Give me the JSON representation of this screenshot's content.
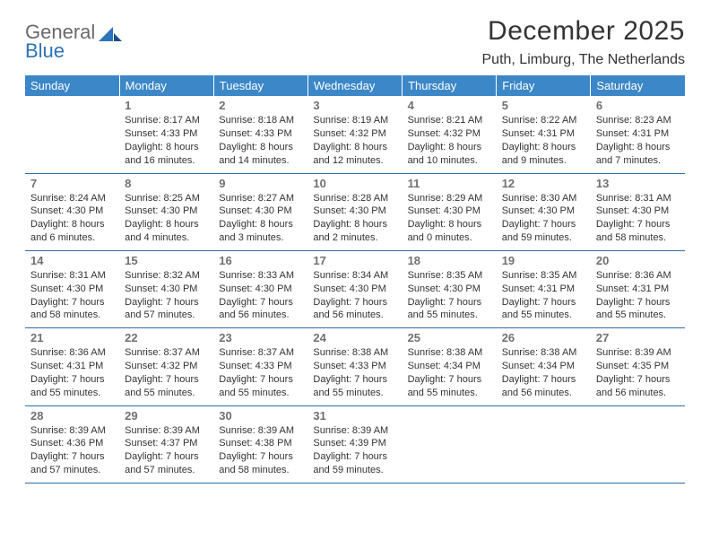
{
  "logo": {
    "line1": "General",
    "line2": "Blue"
  },
  "header": {
    "title": "December 2025",
    "location": "Puth, Limburg, The Netherlands"
  },
  "calendar": {
    "header_bg": "#3c87c7",
    "header_fg": "#ffffff",
    "rule_color": "#2e6ca8",
    "day_headers": [
      "Sunday",
      "Monday",
      "Tuesday",
      "Wednesday",
      "Thursday",
      "Friday",
      "Saturday"
    ],
    "weeks": [
      [
        null,
        {
          "n": "1",
          "sr": "Sunrise: 8:17 AM",
          "ss": "Sunset: 4:33 PM",
          "dl": "Daylight: 8 hours and 16 minutes."
        },
        {
          "n": "2",
          "sr": "Sunrise: 8:18 AM",
          "ss": "Sunset: 4:33 PM",
          "dl": "Daylight: 8 hours and 14 minutes."
        },
        {
          "n": "3",
          "sr": "Sunrise: 8:19 AM",
          "ss": "Sunset: 4:32 PM",
          "dl": "Daylight: 8 hours and 12 minutes."
        },
        {
          "n": "4",
          "sr": "Sunrise: 8:21 AM",
          "ss": "Sunset: 4:32 PM",
          "dl": "Daylight: 8 hours and 10 minutes."
        },
        {
          "n": "5",
          "sr": "Sunrise: 8:22 AM",
          "ss": "Sunset: 4:31 PM",
          "dl": "Daylight: 8 hours and 9 minutes."
        },
        {
          "n": "6",
          "sr": "Sunrise: 8:23 AM",
          "ss": "Sunset: 4:31 PM",
          "dl": "Daylight: 8 hours and 7 minutes."
        }
      ],
      [
        {
          "n": "7",
          "sr": "Sunrise: 8:24 AM",
          "ss": "Sunset: 4:30 PM",
          "dl": "Daylight: 8 hours and 6 minutes."
        },
        {
          "n": "8",
          "sr": "Sunrise: 8:25 AM",
          "ss": "Sunset: 4:30 PM",
          "dl": "Daylight: 8 hours and 4 minutes."
        },
        {
          "n": "9",
          "sr": "Sunrise: 8:27 AM",
          "ss": "Sunset: 4:30 PM",
          "dl": "Daylight: 8 hours and 3 minutes."
        },
        {
          "n": "10",
          "sr": "Sunrise: 8:28 AM",
          "ss": "Sunset: 4:30 PM",
          "dl": "Daylight: 8 hours and 2 minutes."
        },
        {
          "n": "11",
          "sr": "Sunrise: 8:29 AM",
          "ss": "Sunset: 4:30 PM",
          "dl": "Daylight: 8 hours and 0 minutes."
        },
        {
          "n": "12",
          "sr": "Sunrise: 8:30 AM",
          "ss": "Sunset: 4:30 PM",
          "dl": "Daylight: 7 hours and 59 minutes."
        },
        {
          "n": "13",
          "sr": "Sunrise: 8:31 AM",
          "ss": "Sunset: 4:30 PM",
          "dl": "Daylight: 7 hours and 58 minutes."
        }
      ],
      [
        {
          "n": "14",
          "sr": "Sunrise: 8:31 AM",
          "ss": "Sunset: 4:30 PM",
          "dl": "Daylight: 7 hours and 58 minutes."
        },
        {
          "n": "15",
          "sr": "Sunrise: 8:32 AM",
          "ss": "Sunset: 4:30 PM",
          "dl": "Daylight: 7 hours and 57 minutes."
        },
        {
          "n": "16",
          "sr": "Sunrise: 8:33 AM",
          "ss": "Sunset: 4:30 PM",
          "dl": "Daylight: 7 hours and 56 minutes."
        },
        {
          "n": "17",
          "sr": "Sunrise: 8:34 AM",
          "ss": "Sunset: 4:30 PM",
          "dl": "Daylight: 7 hours and 56 minutes."
        },
        {
          "n": "18",
          "sr": "Sunrise: 8:35 AM",
          "ss": "Sunset: 4:30 PM",
          "dl": "Daylight: 7 hours and 55 minutes."
        },
        {
          "n": "19",
          "sr": "Sunrise: 8:35 AM",
          "ss": "Sunset: 4:31 PM",
          "dl": "Daylight: 7 hours and 55 minutes."
        },
        {
          "n": "20",
          "sr": "Sunrise: 8:36 AM",
          "ss": "Sunset: 4:31 PM",
          "dl": "Daylight: 7 hours and 55 minutes."
        }
      ],
      [
        {
          "n": "21",
          "sr": "Sunrise: 8:36 AM",
          "ss": "Sunset: 4:31 PM",
          "dl": "Daylight: 7 hours and 55 minutes."
        },
        {
          "n": "22",
          "sr": "Sunrise: 8:37 AM",
          "ss": "Sunset: 4:32 PM",
          "dl": "Daylight: 7 hours and 55 minutes."
        },
        {
          "n": "23",
          "sr": "Sunrise: 8:37 AM",
          "ss": "Sunset: 4:33 PM",
          "dl": "Daylight: 7 hours and 55 minutes."
        },
        {
          "n": "24",
          "sr": "Sunrise: 8:38 AM",
          "ss": "Sunset: 4:33 PM",
          "dl": "Daylight: 7 hours and 55 minutes."
        },
        {
          "n": "25",
          "sr": "Sunrise: 8:38 AM",
          "ss": "Sunset: 4:34 PM",
          "dl": "Daylight: 7 hours and 55 minutes."
        },
        {
          "n": "26",
          "sr": "Sunrise: 8:38 AM",
          "ss": "Sunset: 4:34 PM",
          "dl": "Daylight: 7 hours and 56 minutes."
        },
        {
          "n": "27",
          "sr": "Sunrise: 8:39 AM",
          "ss": "Sunset: 4:35 PM",
          "dl": "Daylight: 7 hours and 56 minutes."
        }
      ],
      [
        {
          "n": "28",
          "sr": "Sunrise: 8:39 AM",
          "ss": "Sunset: 4:36 PM",
          "dl": "Daylight: 7 hours and 57 minutes."
        },
        {
          "n": "29",
          "sr": "Sunrise: 8:39 AM",
          "ss": "Sunset: 4:37 PM",
          "dl": "Daylight: 7 hours and 57 minutes."
        },
        {
          "n": "30",
          "sr": "Sunrise: 8:39 AM",
          "ss": "Sunset: 4:38 PM",
          "dl": "Daylight: 7 hours and 58 minutes."
        },
        {
          "n": "31",
          "sr": "Sunrise: 8:39 AM",
          "ss": "Sunset: 4:39 PM",
          "dl": "Daylight: 7 hours and 59 minutes."
        },
        null,
        null,
        null
      ]
    ]
  }
}
